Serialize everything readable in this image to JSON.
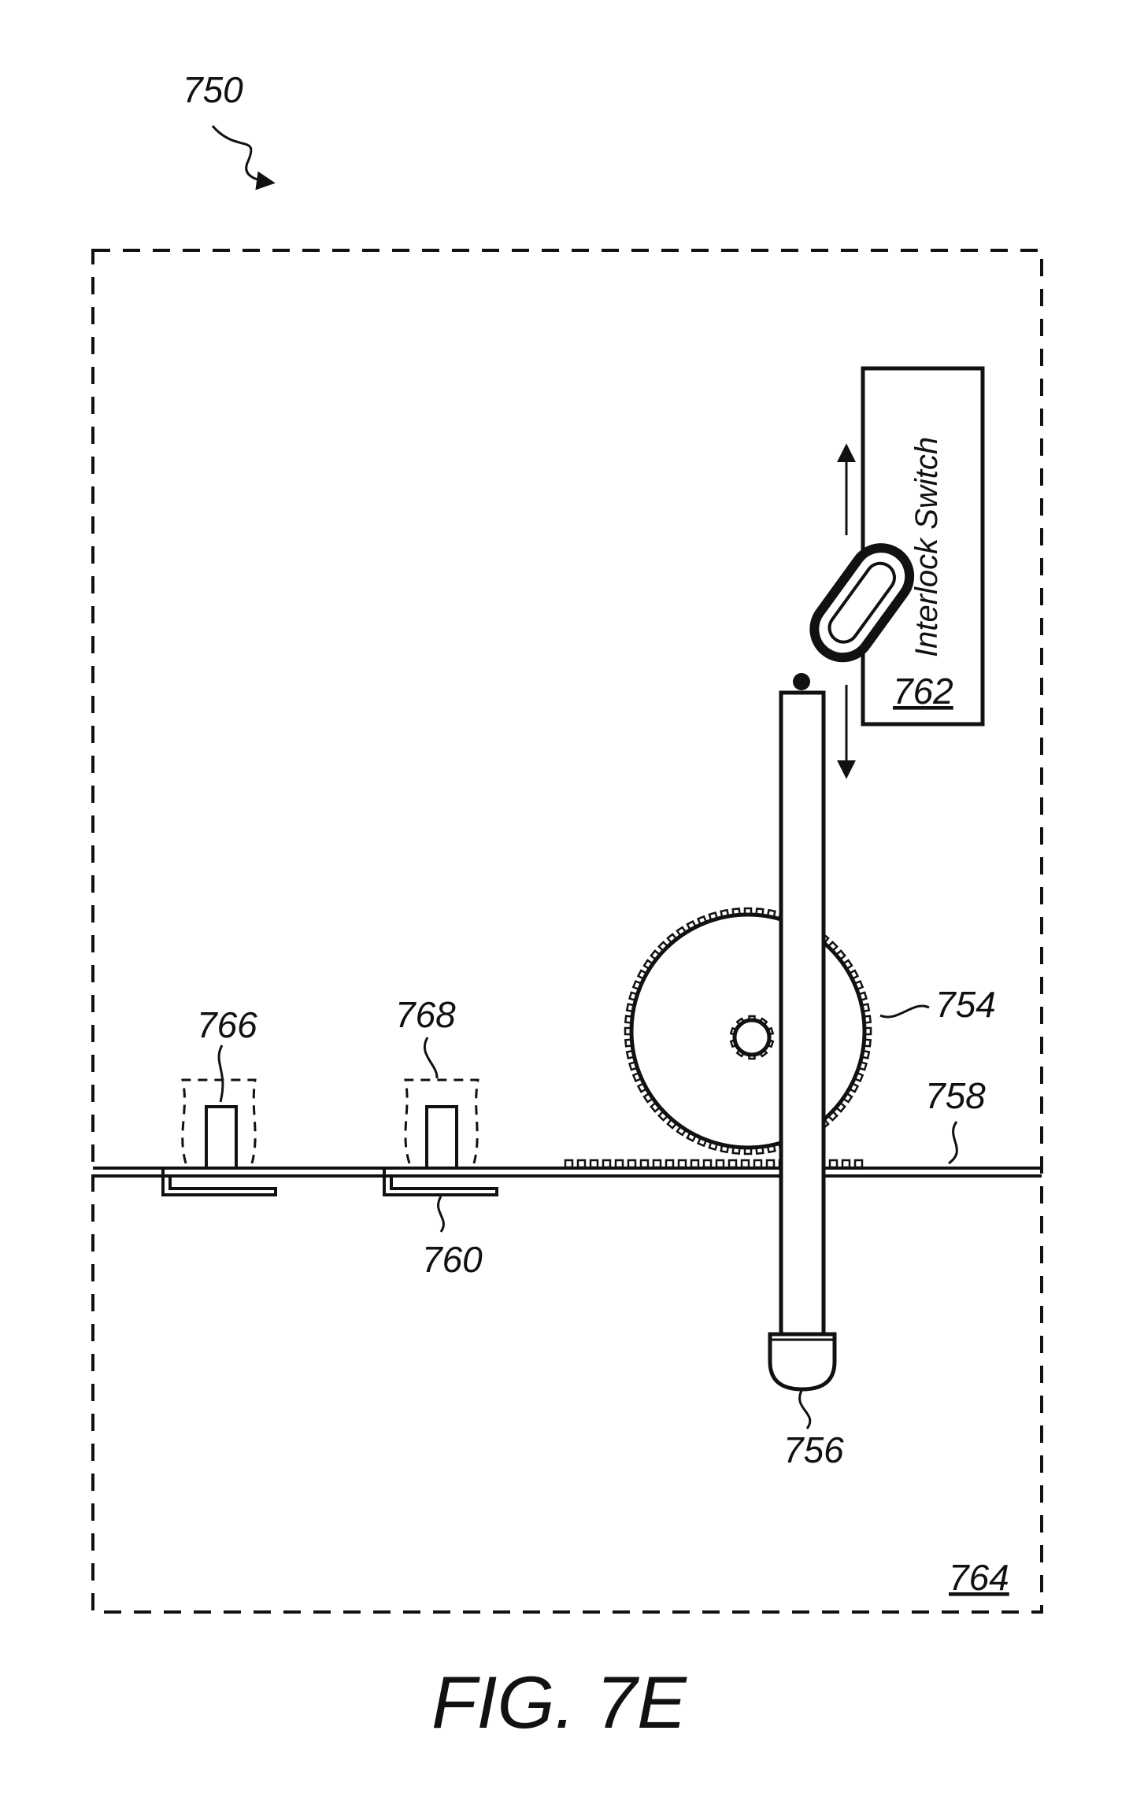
{
  "figure": {
    "caption": "FIG. 7E",
    "switch_label": "Interlock Switch",
    "labels": {
      "assembly": "750",
      "gear": "754",
      "handle_tip": "756",
      "rail": "758",
      "bracket": "760",
      "switch": "762",
      "enclosure": "764",
      "post_left": "766",
      "post_right": "768"
    }
  }
}
